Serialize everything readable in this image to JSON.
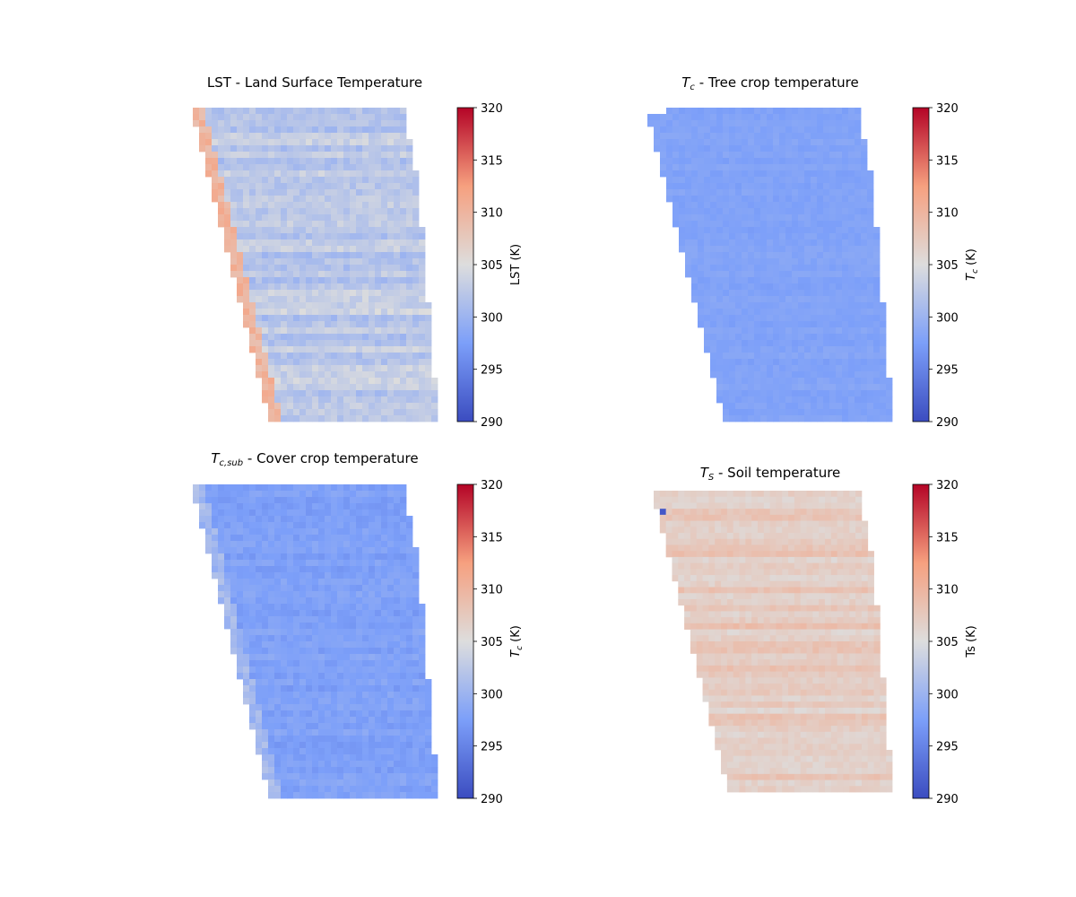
{
  "chart_data": [
    {
      "type": "heatmap",
      "title": "LST - Land Surface Temperature",
      "title_math": "",
      "title_sub": "",
      "title_rest": "",
      "colorbar_label": "LST (K)",
      "colorbar_math": "",
      "colorbar_sub": "",
      "colorbar_rest": "",
      "colormap": "coolwarm",
      "vlim": [
        290,
        320
      ],
      "ticks": [
        290,
        295,
        300,
        305,
        310,
        315,
        320
      ],
      "grid_rows": 50,
      "grid_cols": 39,
      "shape": "western-edge-slants-east-toward-south",
      "mean_value": 302.5,
      "edge_value": 310,
      "stripe_amplitude": 1.5,
      "noise_amplitude": 1.2
    },
    {
      "type": "heatmap",
      "title": "",
      "title_math": "T",
      "title_sub": "c",
      "title_rest": " - Tree crop temperature",
      "colorbar_label": "",
      "colorbar_math": "T",
      "colorbar_sub": "c",
      "colorbar_rest": " (K)",
      "colormap": "coolwarm",
      "vlim": [
        290,
        320
      ],
      "ticks": [
        290,
        295,
        300,
        305,
        310,
        315,
        320
      ],
      "grid_rows": 50,
      "grid_cols": 39,
      "shape": "western-edge-slants-east-toward-south",
      "mean_value": 298.0,
      "edge_value": 298.0,
      "stripe_amplitude": 0.3,
      "noise_amplitude": 0.5
    },
    {
      "type": "heatmap",
      "title": "",
      "title_math": "T",
      "title_sub": "c,sub",
      "title_rest": " - Cover crop temperature",
      "colorbar_label": "",
      "colorbar_math": "T",
      "colorbar_sub": "c",
      "colorbar_rest": " (K)",
      "colormap": "coolwarm",
      "vlim": [
        290,
        320
      ],
      "ticks": [
        290,
        295,
        300,
        305,
        310,
        315,
        320
      ],
      "grid_rows": 50,
      "grid_cols": 39,
      "shape": "western-edge-slants-east-toward-south",
      "mean_value": 297.8,
      "edge_value": 300.5,
      "stripe_amplitude": 0.5,
      "noise_amplitude": 0.8
    },
    {
      "type": "heatmap",
      "title": "",
      "title_math": "T",
      "title_sub": "S",
      "title_rest": " - Soil temperature",
      "colorbar_label": "Ts (K)",
      "colorbar_math": "",
      "colorbar_sub": "",
      "colorbar_rest": "",
      "colormap": "coolwarm",
      "vlim": [
        290,
        320
      ],
      "ticks": [
        290,
        295,
        300,
        305,
        310,
        315,
        320
      ],
      "grid_rows": 50,
      "grid_cols": 39,
      "shape": "western-edge-slants-east-toward-south",
      "mean_value": 307.5,
      "edge_value": 307.5,
      "stripe_amplitude": 1.5,
      "noise_amplitude": 0.8,
      "outlier_value": 291
    }
  ]
}
